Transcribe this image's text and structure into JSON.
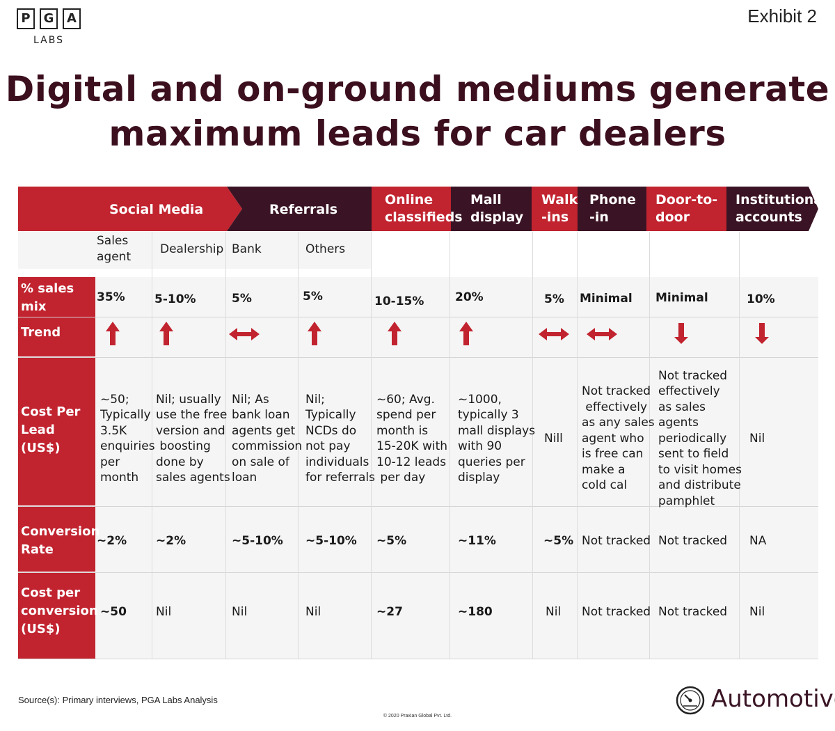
{
  "logo": {
    "letters": [
      "P",
      "G",
      "A"
    ],
    "sub": "LABS"
  },
  "exhibit": "Exhibit 2",
  "title": {
    "line1": "Digital and on-ground mediums generate",
    "line2": "maximum leads for car dealers"
  },
  "headers": {
    "social_media": "Social Media",
    "referrals": "Referrals",
    "online": [
      "Online",
      "classifieds"
    ],
    "mall": [
      "Mall",
      "display"
    ],
    "walk": [
      "Walk",
      "-ins"
    ],
    "phone": [
      "Phone",
      "-in"
    ],
    "door": [
      "Door-to-",
      "door"
    ],
    "institutional": [
      "Institutional",
      "accounts"
    ]
  },
  "subheaders": {
    "sales_agent": [
      "Sales",
      "agent"
    ],
    "dealership": "Dealership",
    "bank": "Bank",
    "others": "Others"
  },
  "row_labels": {
    "sales_mix": [
      "% sales",
      "mix"
    ],
    "trend": "Trend",
    "cpl": [
      "Cost Per",
      "Lead",
      "(US$)"
    ],
    "conv": [
      "Conversion",
      "Rate"
    ],
    "cpc": [
      "Cost per",
      "conversion",
      "(US$)"
    ]
  },
  "sales_mix": [
    "35%",
    "5-10%",
    "5%",
    "5%",
    "10-15%",
    "20%",
    "5%",
    "Minimal",
    "Minimal",
    "10%"
  ],
  "trend": [
    "up",
    "up",
    "both",
    "up",
    "up",
    "up",
    "both",
    "both",
    "down",
    "down"
  ],
  "cost_per_lead": [
    [
      "~50;",
      "Typically",
      "3.5K",
      "enquiries",
      "per",
      "month"
    ],
    [
      "Nil; usually",
      "use the free",
      "version and",
      " boosting",
      "done by",
      "sales agents"
    ],
    [
      "Nil; As",
      "bank loan",
      "agents get",
      "commission",
      "on sale of",
      "loan"
    ],
    [
      "Nil;",
      "Typically",
      "NCDs do",
      "not pay",
      "individuals",
      "for referrals"
    ],
    [
      "~60; Avg.",
      "spend per",
      "month is",
      "15-20K with",
      "10-12 leads",
      " per day"
    ],
    [
      "~1000,",
      "typically 3",
      "mall displays",
      "with 90",
      "queries per",
      "display"
    ],
    [
      "Nill"
    ],
    [
      "Not tracked",
      " effectively",
      "as any sales",
      "agent who",
      "is free can",
      "make a",
      "cold cal"
    ],
    [
      "Not tracked",
      "effectively",
      "as sales",
      "agents",
      "periodically",
      "sent to field",
      "to visit homes",
      "and distribute",
      "pamphlet"
    ],
    [
      "Nil"
    ]
  ],
  "conversion_rate": [
    "~2%",
    "~2%",
    "~5-10%",
    "~5-10%",
    "~5%",
    "~11%",
    "~5%",
    "Not tracked",
    "Not tracked",
    "NA"
  ],
  "cost_per_conversion": [
    "~50",
    "Nil",
    "Nil",
    "Nil",
    "~27",
    "~180",
    "Nil",
    "Not tracked",
    "Not tracked",
    "Nil"
  ],
  "footer": {
    "source": "Source(s): Primary interviews, PGA Labs Analysis",
    "copyright": "© 2020 Praxian Global Pvt. Ltd.",
    "sector": "Automotive"
  },
  "colors": {
    "red": "#c1232f",
    "dark": "#3a1424",
    "title": "#3c0f1e"
  }
}
